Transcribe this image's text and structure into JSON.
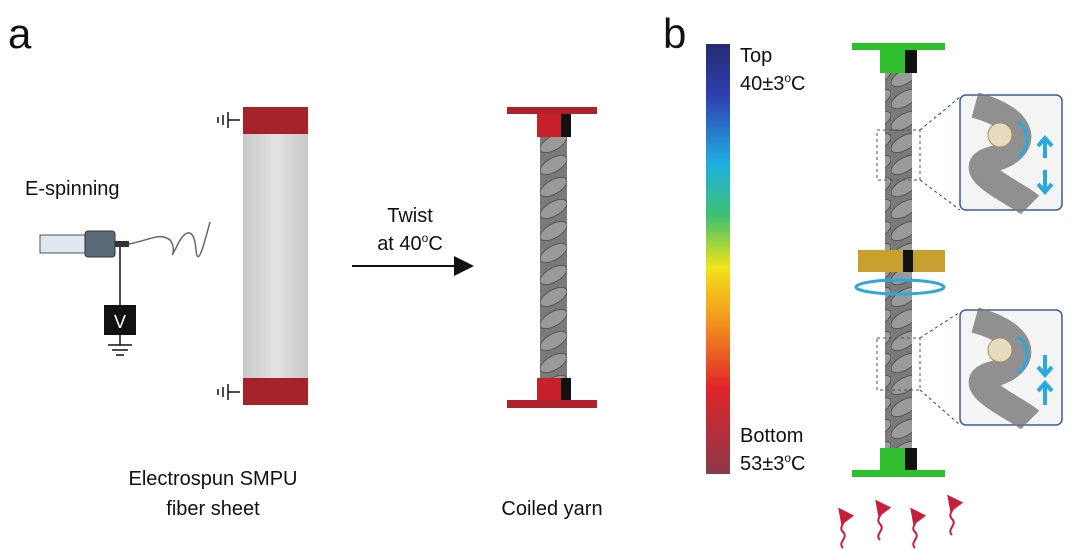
{
  "panel_a": {
    "label": "a",
    "espinning": "E-spinning",
    "voltage": "V",
    "sheet_caption": [
      "Electrospun SMPU",
      "fiber sheet"
    ],
    "twist": {
      "line1": "Twist",
      "line2": "at 40",
      "degree": "o",
      "unit": "C"
    },
    "yarn_caption": "Coiled yarn"
  },
  "panel_b": {
    "label": "b",
    "top": {
      "name": "Top",
      "temp": "40±3",
      "degree": "o",
      "unit": "C"
    },
    "bottom": {
      "name": "Bottom",
      "temp": "53±3",
      "degree": "o",
      "unit": "C"
    }
  }
}
